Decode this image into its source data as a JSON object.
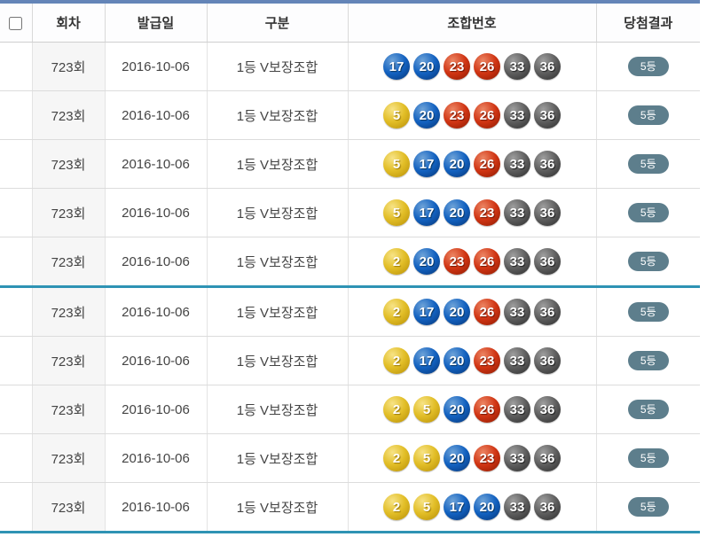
{
  "table": {
    "headers": {
      "round": "회차",
      "issue_date": "발급일",
      "category": "구분",
      "combination": "조합번호",
      "result": "당첨결과"
    },
    "rows": [
      {
        "round": "723회",
        "issue_date": "2016-10-06",
        "category": "1등 V보장조합",
        "numbers": [
          17,
          20,
          23,
          26,
          33,
          36
        ],
        "result": "5등",
        "group_end": false
      },
      {
        "round": "723회",
        "issue_date": "2016-10-06",
        "category": "1등 V보장조합",
        "numbers": [
          5,
          20,
          23,
          26,
          33,
          36
        ],
        "result": "5등",
        "group_end": false
      },
      {
        "round": "723회",
        "issue_date": "2016-10-06",
        "category": "1등 V보장조합",
        "numbers": [
          5,
          17,
          20,
          26,
          33,
          36
        ],
        "result": "5등",
        "group_end": false
      },
      {
        "round": "723회",
        "issue_date": "2016-10-06",
        "category": "1등 V보장조합",
        "numbers": [
          5,
          17,
          20,
          23,
          33,
          36
        ],
        "result": "5등",
        "group_end": false
      },
      {
        "round": "723회",
        "issue_date": "2016-10-06",
        "category": "1등 V보장조합",
        "numbers": [
          2,
          20,
          23,
          26,
          33,
          36
        ],
        "result": "5등",
        "group_end": true
      },
      {
        "round": "723회",
        "issue_date": "2016-10-06",
        "category": "1등 V보장조합",
        "numbers": [
          2,
          17,
          20,
          26,
          33,
          36
        ],
        "result": "5등",
        "group_end": false
      },
      {
        "round": "723회",
        "issue_date": "2016-10-06",
        "category": "1등 V보장조합",
        "numbers": [
          2,
          17,
          20,
          23,
          33,
          36
        ],
        "result": "5등",
        "group_end": false
      },
      {
        "round": "723회",
        "issue_date": "2016-10-06",
        "category": "1등 V보장조합",
        "numbers": [
          2,
          5,
          20,
          26,
          33,
          36
        ],
        "result": "5등",
        "group_end": false
      },
      {
        "round": "723회",
        "issue_date": "2016-10-06",
        "category": "1등 V보장조합",
        "numbers": [
          2,
          5,
          20,
          23,
          33,
          36
        ],
        "result": "5등",
        "group_end": false
      },
      {
        "round": "723회",
        "issue_date": "2016-10-06",
        "category": "1등 V보장조합",
        "numbers": [
          2,
          5,
          17,
          20,
          33,
          36
        ],
        "result": "5등",
        "group_end": false
      }
    ]
  },
  "colors": {
    "table_top_border": "#6485b8",
    "group_divider": "#2e93b4",
    "badge_background": "#5d7e8c",
    "ball_yellow_1_10": "#e2be27",
    "ball_blue_11_20": "#1261c0",
    "ball_red_21_30": "#d03413",
    "ball_gray_31_40": "#5d5d5d"
  }
}
